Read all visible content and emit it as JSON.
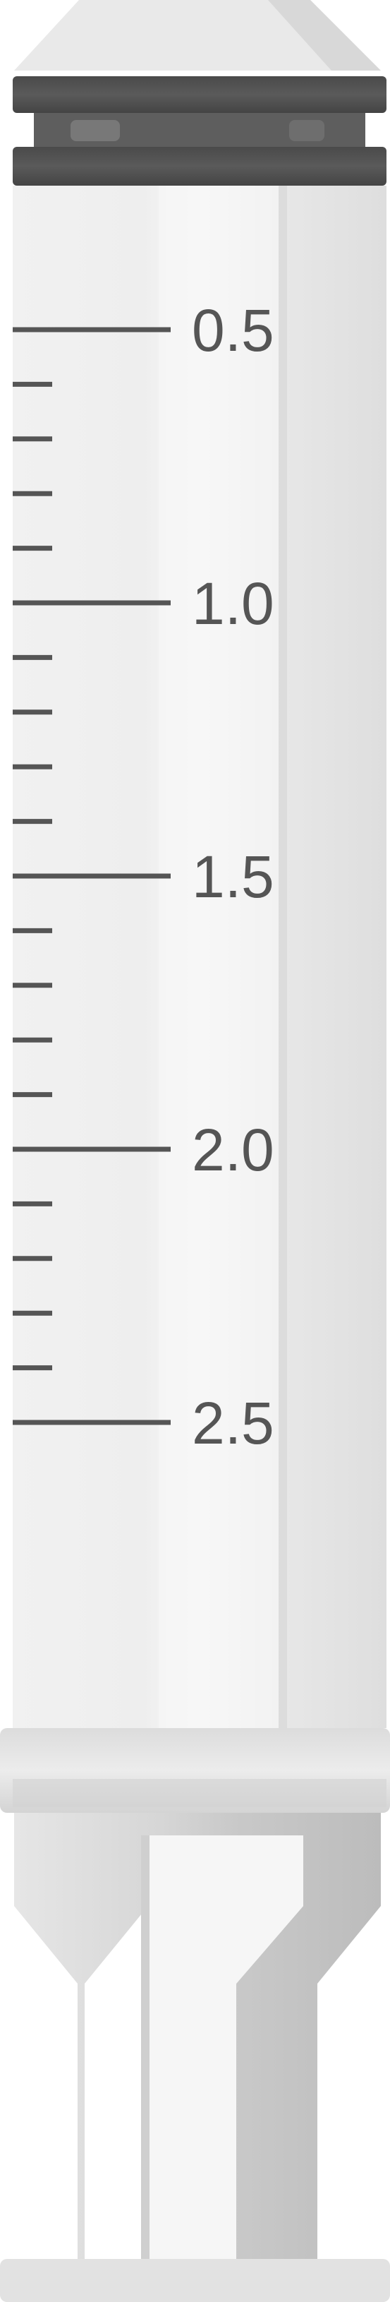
{
  "syringe": {
    "scale": {
      "labels": [
        "0.5",
        "1.0",
        "1.5",
        "2.0",
        "2.5"
      ],
      "minor_ticks_between_labels": 4
    },
    "colors": {
      "barrel": "#ececec",
      "barrel_highlight": "#f8f8f8",
      "barrel_shadow": "#d9d9d9",
      "graduation": "#555555",
      "rubber_seal": "#4d4d4d",
      "rubber_seal_light": "#6e6e6e",
      "flange": "#e6e6e6",
      "plunger_rod": "#d2d2d2",
      "plunger_rod_dark": "#bdbdbd",
      "background": "#ffffff"
    }
  }
}
